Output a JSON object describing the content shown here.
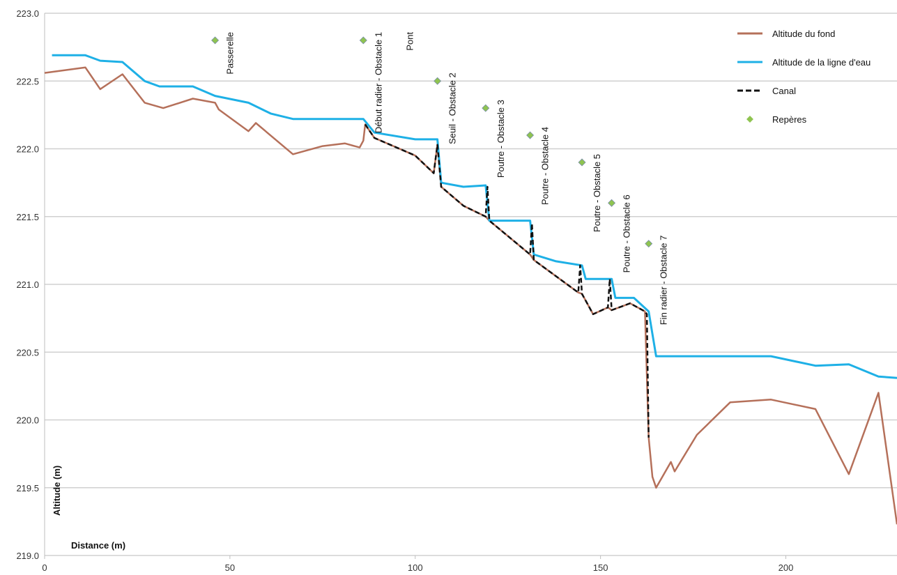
{
  "chart_data": {
    "type": "line",
    "xlabel": "Distance (m)",
    "ylabel": "Altitude (m)",
    "xlim": [
      0,
      230
    ],
    "ylim": [
      219.0,
      223.0
    ],
    "xticks": [
      "0",
      "50",
      "100",
      "150",
      "200"
    ],
    "yticks": [
      "219.0",
      "219.5",
      "220.0",
      "220.5",
      "221.0",
      "221.5",
      "222.0",
      "222.5",
      "223.0"
    ],
    "grid": "horizontal",
    "legend_position": "top-right",
    "series": [
      {
        "name": "Altitude du fond",
        "color": "#b5705a",
        "style": "solid",
        "points": [
          [
            0,
            222.56
          ],
          [
            11,
            222.6
          ],
          [
            15,
            222.44
          ],
          [
            21,
            222.55
          ],
          [
            27,
            222.34
          ],
          [
            32,
            222.3
          ],
          [
            40,
            222.37
          ],
          [
            46,
            222.34
          ],
          [
            47,
            222.29
          ],
          [
            55,
            222.13
          ],
          [
            57,
            222.19
          ],
          [
            67,
            221.96
          ],
          [
            75,
            222.02
          ],
          [
            81,
            222.04
          ],
          [
            85,
            222.01
          ],
          [
            86,
            222.06
          ],
          [
            86.5,
            222.18
          ],
          [
            89,
            222.08
          ],
          [
            100,
            221.95
          ],
          [
            105,
            221.82
          ],
          [
            106,
            222.03
          ],
          [
            107,
            221.72
          ],
          [
            113,
            221.58
          ],
          [
            119,
            221.5
          ],
          [
            120,
            221.47
          ],
          [
            131,
            221.22
          ],
          [
            132,
            221.18
          ],
          [
            144,
            220.94
          ],
          [
            145,
            220.93
          ],
          [
            148,
            220.78
          ],
          [
            152,
            220.83
          ],
          [
            153,
            220.81
          ],
          [
            158,
            220.86
          ],
          [
            162,
            220.8
          ],
          [
            163,
            219.87
          ],
          [
            164,
            219.58
          ],
          [
            165,
            219.5
          ],
          [
            169,
            219.69
          ],
          [
            170,
            219.62
          ],
          [
            176,
            219.89
          ],
          [
            185,
            220.13
          ],
          [
            196,
            220.15
          ],
          [
            208,
            220.08
          ],
          [
            217,
            219.6
          ],
          [
            225,
            220.2
          ],
          [
            230,
            219.23
          ]
        ]
      },
      {
        "name": "Altitude de la ligne d'eau",
        "color": "#1eb0e6",
        "style": "solid",
        "points": [
          [
            2,
            222.69
          ],
          [
            11,
            222.69
          ],
          [
            15,
            222.65
          ],
          [
            21,
            222.64
          ],
          [
            27,
            222.5
          ],
          [
            31,
            222.46
          ],
          [
            40,
            222.46
          ],
          [
            46,
            222.39
          ],
          [
            55,
            222.34
          ],
          [
            61,
            222.26
          ],
          [
            67,
            222.22
          ],
          [
            86,
            222.22
          ],
          [
            89,
            222.12
          ],
          [
            100,
            222.07
          ],
          [
            106,
            222.07
          ],
          [
            107,
            221.75
          ],
          [
            113,
            221.72
          ],
          [
            119,
            221.73
          ],
          [
            120,
            221.47
          ],
          [
            131,
            221.47
          ],
          [
            132,
            221.22
          ],
          [
            138,
            221.17
          ],
          [
            145,
            221.14
          ],
          [
            146,
            221.04
          ],
          [
            153,
            221.04
          ],
          [
            154,
            220.9
          ],
          [
            159,
            220.9
          ],
          [
            163,
            220.8
          ],
          [
            165,
            220.47
          ],
          [
            196,
            220.47
          ],
          [
            208,
            220.4
          ],
          [
            217,
            220.41
          ],
          [
            225,
            220.32
          ],
          [
            230,
            220.31
          ]
        ]
      },
      {
        "name": "Canal",
        "color": "#111111",
        "style": "dashed",
        "points": [
          [
            86.5,
            222.18
          ],
          [
            89,
            222.08
          ],
          [
            100,
            221.95
          ],
          [
            105,
            221.82
          ],
          [
            106,
            222.03
          ],
          [
            107,
            221.72
          ],
          [
            113,
            221.58
          ],
          [
            119,
            221.5
          ],
          [
            119.5,
            221.72
          ],
          [
            120,
            221.47
          ],
          [
            131,
            221.22
          ],
          [
            131.5,
            221.45
          ],
          [
            132,
            221.18
          ],
          [
            144,
            220.94
          ],
          [
            144.5,
            221.14
          ],
          [
            145,
            220.93
          ],
          [
            148,
            220.78
          ],
          [
            152,
            220.83
          ],
          [
            152.5,
            221.04
          ],
          [
            153,
            220.81
          ],
          [
            158,
            220.86
          ],
          [
            162,
            220.8
          ],
          [
            162.5,
            220.78
          ],
          [
            163,
            219.87
          ]
        ]
      }
    ],
    "markers": {
      "name": "Repères",
      "color": "#8fc450",
      "points": [
        {
          "x": 46,
          "y": 222.8,
          "label": "Passerelle"
        },
        {
          "x": 86,
          "y": 222.8,
          "label": "Début radier - Obstacle 1"
        },
        {
          "x": 106,
          "y": 222.5,
          "label": "Seuil - Obstacle 2"
        },
        {
          "x": 119,
          "y": 222.3,
          "label": "Poutre - Obstacle 3"
        },
        {
          "x": 131,
          "y": 222.1,
          "label": "Poutre - Obstacle 4"
        },
        {
          "x": 145,
          "y": 221.9,
          "label": "Poutre - Obstacle 5"
        },
        {
          "x": 153,
          "y": 221.6,
          "label": "Poutre - Obstacle 6"
        },
        {
          "x": 163,
          "y": 221.3,
          "label": "Fin radier - Obstacle 7"
        }
      ],
      "extra_labels": [
        {
          "x": 96,
          "y": 222.8,
          "label": "Pont"
        }
      ]
    }
  }
}
